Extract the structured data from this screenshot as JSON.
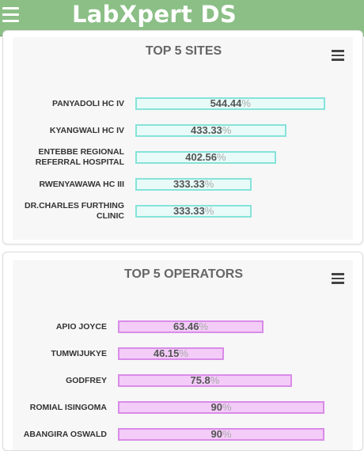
{
  "app": {
    "title": "LabXpert DS"
  },
  "colors": {
    "header": "#8bbf86",
    "sites_bar_fill": "#e8fbf9",
    "sites_bar_border": "#86e3d9",
    "ops_bar_fill": "#f3ccf8",
    "ops_bar_border": "#d98ce8"
  },
  "icons": {
    "nav_menu": "menu-icon",
    "chart_menu": "hamburger-icon"
  },
  "chart_data": [
    {
      "type": "bar",
      "orientation": "horizontal",
      "title": "TOP 5 SITES",
      "categories": [
        "PANYADOLI HC IV",
        "KYANGWALI HC IV",
        "ENTEBBE REGIONAL REFERRAL HOSPITAL",
        "RWENYAWAWA HC III",
        "DR.CHARLES FURTHING CLINIC"
      ],
      "category_lines": [
        [
          "PANYADOLI HC IV"
        ],
        [
          "KYANGWALI HC IV"
        ],
        [
          "ENTEBBE REGIONAL",
          "REFERRAL HOSPITAL"
        ],
        [
          "RWENYAWAWA HC III"
        ],
        [
          "DR.CHARLES FURTHING",
          "CLINIC"
        ]
      ],
      "values": [
        544.44,
        433.33,
        402.56,
        333.33,
        333.33
      ],
      "value_labels": [
        "544.44",
        "433.33",
        "402.56",
        "333.33",
        "333.33"
      ],
      "unit": "%",
      "xlim": [
        0,
        600
      ],
      "grid": false
    },
    {
      "type": "bar",
      "orientation": "horizontal",
      "title": "TOP 5 OPERATORS",
      "categories": [
        "APIO JOYCE",
        "TUMWIJUKYE",
        "GODFREY",
        "ROMIAL ISINGOMA",
        "ABANGIRA OSWALD"
      ],
      "category_lines": [
        [
          "APIO JOYCE"
        ],
        [
          "TUMWIJUKYE"
        ],
        [
          "GODFREY"
        ],
        [
          "ROMIAL ISINGOMA"
        ],
        [
          "ABANGIRA OSWALD"
        ]
      ],
      "values": [
        63.46,
        46.15,
        75.8,
        90,
        90
      ],
      "value_labels": [
        "63.46",
        "46.15",
        "75.8",
        "90",
        "90"
      ],
      "unit": "%",
      "xlim": [
        0,
        100
      ],
      "grid": false
    }
  ]
}
